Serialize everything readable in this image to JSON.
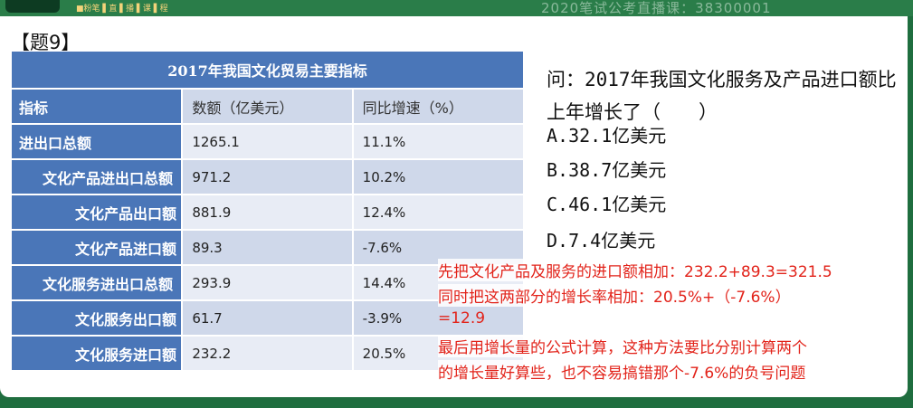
{
  "top_bar": {
    "brand": "■粉笔 ▌直 ▌播 ▌课 ▌程",
    "ticker": "2020笔试公考直播课：38300001"
  },
  "question_label": "【题9】",
  "table": {
    "title": "2017年我国文化贸易主要指标",
    "headers": [
      "指标",
      "数额（亿美元）",
      "同比增速（%）"
    ],
    "rows": [
      {
        "name": "进出口总额",
        "value": "1265.1",
        "growth": "11.1%"
      },
      {
        "name": "文化产品进出口总额",
        "value": "971.2",
        "growth": "10.2%"
      },
      {
        "name": "文化产品出口额",
        "value": "881.9",
        "growth": "12.4%"
      },
      {
        "name": "文化产品进口额",
        "value": "89.3",
        "growth": "-7.6%"
      },
      {
        "name": "文化服务进出口总额",
        "value": "293.9",
        "growth": "14.4%"
      },
      {
        "name": "文化服务出口额",
        "value": "61.7",
        "growth": "-3.9%"
      },
      {
        "name": "文化服务进口额",
        "value": "232.2",
        "growth": "20.5%"
      }
    ]
  },
  "question": "问：2017年我国文化服务及产品进口额比上年增长了（　　）",
  "options": [
    "A.32.1亿美元",
    "B.38.7亿美元",
    "C.46.1亿美元",
    "D.7.4亿美元"
  ],
  "notes": [
    "先把文化产品及服务的进口额相加：232.2+89.3=321.5",
    "同时把这两部分的增长率相加：20.5%+（-7.6%）",
    "=12.9",
    "最后用增长量的公式计算，这种方法要比分别计算两个",
    "的增长量好算些，也不容易搞错那个-7.6%的负号问题"
  ],
  "colors": {
    "table_header": "#4a76b8",
    "note_text": "#e2231a",
    "frame": "#1f6e3f"
  }
}
